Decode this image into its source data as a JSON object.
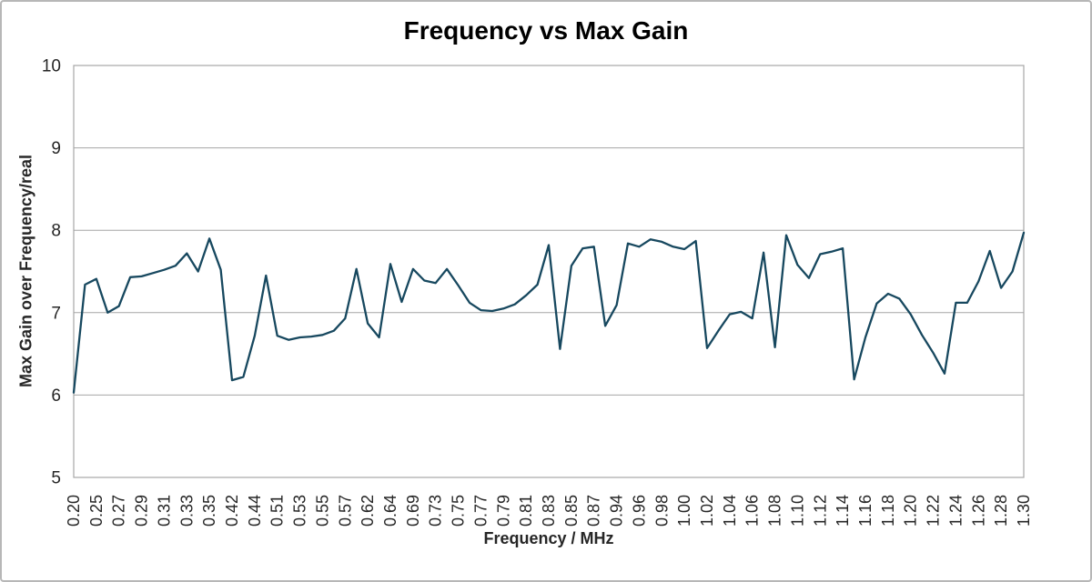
{
  "chart_data": {
    "type": "line",
    "title": "Frequency vs Max Gain",
    "xlabel": "Frequency / MHz",
    "ylabel": "Max Gain over Frequency/real",
    "ylim": [
      5,
      10
    ],
    "y_ticks": [
      5,
      6,
      7,
      8,
      9,
      10
    ],
    "x_axis_type": "category",
    "x_tick_labels": [
      "0.20",
      "0.25",
      "0.27",
      "0.29",
      "0.31",
      "0.33",
      "0.35",
      "0.42",
      "0.44",
      "0.51",
      "0.53",
      "0.55",
      "0.57",
      "0.62",
      "0.64",
      "0.69",
      "0.73",
      "0.75",
      "0.77",
      "0.79",
      "0.81",
      "0.83",
      "0.85",
      "0.87",
      "0.94",
      "0.96",
      "0.98",
      "1.00",
      "1.02",
      "1.04",
      "1.06",
      "1.08",
      "1.10",
      "1.12",
      "1.14",
      "1.16",
      "1.18",
      "1.20",
      "1.22",
      "1.24",
      "1.26",
      "1.28",
      "1.30"
    ],
    "points_per_label_interval": 2,
    "values": [
      6.03,
      7.34,
      7.41,
      7.0,
      7.08,
      7.43,
      7.44,
      7.48,
      7.52,
      7.57,
      7.72,
      7.5,
      7.9,
      7.52,
      6.18,
      6.22,
      6.72,
      7.45,
      6.72,
      6.67,
      6.7,
      6.71,
      6.73,
      6.78,
      6.93,
      7.53,
      6.87,
      6.7,
      7.59,
      7.13,
      7.53,
      7.39,
      7.36,
      7.53,
      7.33,
      7.12,
      7.03,
      7.02,
      7.05,
      7.1,
      7.21,
      7.34,
      7.82,
      6.56,
      7.57,
      7.78,
      7.8,
      6.84,
      7.09,
      7.84,
      7.8,
      7.89,
      7.86,
      7.8,
      7.77,
      7.87,
      6.57,
      6.78,
      6.98,
      7.01,
      6.93,
      7.73,
      6.58,
      7.94,
      7.58,
      7.42,
      7.71,
      7.74,
      7.78,
      6.19,
      6.7,
      7.11,
      7.23,
      7.17,
      6.98,
      6.73,
      6.51,
      6.26,
      7.12,
      7.12,
      7.38,
      7.75,
      7.3,
      7.5,
      7.97
    ],
    "line_color": "#17485f",
    "gridline_color": "#a6a6a6",
    "plot_border_color": "#a6a6a6",
    "axis_text_color": "#262626",
    "title_color": "#000000",
    "grid": "horizontal",
    "legend": "none"
  }
}
